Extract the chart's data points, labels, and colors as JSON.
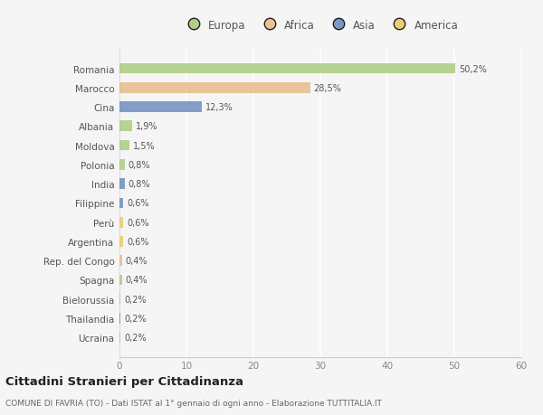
{
  "categories": [
    "Romania",
    "Marocco",
    "Cina",
    "Albania",
    "Moldova",
    "Polonia",
    "India",
    "Filippine",
    "Perù",
    "Argentina",
    "Rep. del Congo",
    "Spagna",
    "Bielorussia",
    "Thailandia",
    "Ucraina"
  ],
  "values": [
    50.2,
    28.5,
    12.3,
    1.9,
    1.5,
    0.8,
    0.8,
    0.6,
    0.6,
    0.6,
    0.4,
    0.4,
    0.2,
    0.2,
    0.2
  ],
  "labels": [
    "50,2%",
    "28,5%",
    "12,3%",
    "1,9%",
    "1,5%",
    "0,8%",
    "0,8%",
    "0,6%",
    "0,6%",
    "0,6%",
    "0,4%",
    "0,4%",
    "0,2%",
    "0,2%",
    "0,2%"
  ],
  "colors": [
    "#a8c87a",
    "#e8b882",
    "#6688bb",
    "#a8c87a",
    "#a8c87a",
    "#a8c87a",
    "#6688bb",
    "#6688bb",
    "#e8c860",
    "#e8c860",
    "#e8b882",
    "#a8c87a",
    "#a8c87a",
    "#6688bb",
    "#a8c87a"
  ],
  "legend_labels": [
    "Europa",
    "Africa",
    "Asia",
    "America"
  ],
  "legend_colors": [
    "#a8c87a",
    "#e8b882",
    "#6688bb",
    "#e8c860"
  ],
  "title": "Cittadini Stranieri per Cittadinanza",
  "subtitle": "COMUNE DI FAVRIA (TO) - Dati ISTAT al 1° gennaio di ogni anno - Elaborazione TUTTITALIA.IT",
  "xlim": [
    0,
    60
  ],
  "xticks": [
    0,
    10,
    20,
    30,
    40,
    50,
    60
  ],
  "bg_color": "#f5f5f5",
  "grid_color": "#ffffff",
  "bar_height": 0.55
}
